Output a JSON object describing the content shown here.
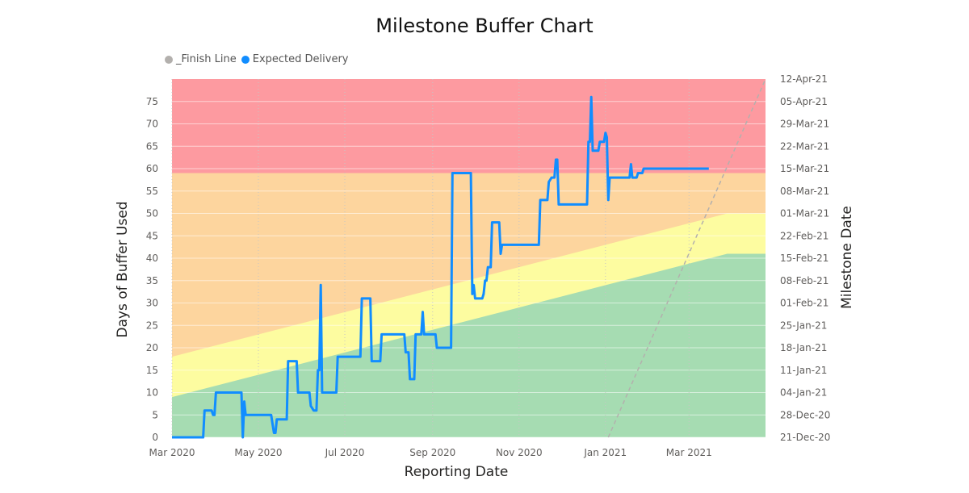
{
  "chart_data": {
    "type": "line",
    "title": "Milestone Buffer Chart",
    "xlabel": "Reporting Date",
    "ylabel": "Days of Buffer Used",
    "y2label": "Milestone Date",
    "x_range": [
      "2020-03-01",
      "2021-04-24"
    ],
    "ylim": [
      0,
      80
    ],
    "y_ticks": [
      0,
      5,
      10,
      15,
      20,
      25,
      30,
      35,
      40,
      45,
      50,
      55,
      60,
      65,
      70,
      75
    ],
    "x_ticks": [
      {
        "date": "2020-03-01",
        "label": "Mar 2020"
      },
      {
        "date": "2020-05-01",
        "label": "May 2020"
      },
      {
        "date": "2020-07-01",
        "label": "Jul 2020"
      },
      {
        "date": "2020-09-01",
        "label": "Sep 2020"
      },
      {
        "date": "2020-11-01",
        "label": "Nov 2020"
      },
      {
        "date": "2021-01-01",
        "label": "Jan 2021"
      },
      {
        "date": "2021-03-01",
        "label": "Mar 2021"
      }
    ],
    "y2_range": [
      "2020-12-21",
      "2021-04-12"
    ],
    "y2_ticks": [
      "21-Dec-20",
      "28-Dec-20",
      "04-Jan-21",
      "11-Jan-21",
      "18-Jan-21",
      "25-Jan-21",
      "01-Feb-21",
      "08-Feb-21",
      "15-Feb-21",
      "22-Feb-21",
      "01-Mar-21",
      "08-Mar-21",
      "15-Mar-21",
      "22-Mar-21",
      "29-Mar-21",
      "05-Apr-21",
      "12-Apr-21"
    ],
    "grid": true,
    "legend_position": "top-left",
    "zones": [
      {
        "name": "green",
        "color": "#a6dcb2",
        "upper": [
          [
            "2020-03-01",
            9
          ],
          [
            "2021-03-28",
            41
          ],
          [
            "2021-04-24",
            41
          ]
        ]
      },
      {
        "name": "yellow",
        "color": "#fdfca0",
        "upper": [
          [
            "2020-03-01",
            18
          ],
          [
            "2021-03-28",
            50
          ],
          [
            "2021-04-24",
            50
          ]
        ]
      },
      {
        "name": "orange",
        "color": "#fdd59e",
        "upper": [
          [
            "2020-03-01",
            59
          ],
          [
            "2021-04-24",
            59
          ]
        ]
      },
      {
        "name": "red",
        "color": "#fd9aa0",
        "upper": [
          [
            "2020-03-01",
            80
          ],
          [
            "2021-04-24",
            80
          ]
        ]
      }
    ],
    "series": [
      {
        "name": "_Finish Line",
        "color": "#b3b0ad",
        "dashed": true,
        "axis": "y2",
        "points": [
          [
            "2021-01-03",
            "2020-12-21"
          ],
          [
            "2021-04-24",
            "2021-04-12"
          ]
        ]
      },
      {
        "name": "Expected Delivery",
        "color": "#118dff",
        "axis": "y",
        "points": [
          [
            "2020-03-01",
            0
          ],
          [
            "2020-03-23",
            0
          ],
          [
            "2020-03-24",
            6
          ],
          [
            "2020-03-29",
            6
          ],
          [
            "2020-03-30",
            5
          ],
          [
            "2020-03-31",
            5
          ],
          [
            "2020-04-01",
            10
          ],
          [
            "2020-04-19",
            10
          ],
          [
            "2020-04-20",
            0
          ],
          [
            "2020-04-21",
            8
          ],
          [
            "2020-04-22",
            5
          ],
          [
            "2020-05-10",
            5
          ],
          [
            "2020-05-11",
            3
          ],
          [
            "2020-05-12",
            1
          ],
          [
            "2020-05-13",
            1
          ],
          [
            "2020-05-14",
            4
          ],
          [
            "2020-05-21",
            4
          ],
          [
            "2020-05-22",
            17
          ],
          [
            "2020-05-28",
            17
          ],
          [
            "2020-05-29",
            10
          ],
          [
            "2020-06-06",
            10
          ],
          [
            "2020-06-07",
            7
          ],
          [
            "2020-06-09",
            6
          ],
          [
            "2020-06-11",
            6
          ],
          [
            "2020-06-12",
            15
          ],
          [
            "2020-06-13",
            15
          ],
          [
            "2020-06-14",
            34
          ],
          [
            "2020-06-15",
            10
          ],
          [
            "2020-06-25",
            10
          ],
          [
            "2020-06-26",
            18
          ],
          [
            "2020-07-12",
            18
          ],
          [
            "2020-07-13",
            31
          ],
          [
            "2020-07-19",
            31
          ],
          [
            "2020-07-20",
            17
          ],
          [
            "2020-07-26",
            17
          ],
          [
            "2020-07-27",
            23
          ],
          [
            "2020-08-12",
            23
          ],
          [
            "2020-08-13",
            19
          ],
          [
            "2020-08-15",
            19
          ],
          [
            "2020-08-16",
            13
          ],
          [
            "2020-08-19",
            13
          ],
          [
            "2020-08-20",
            23
          ],
          [
            "2020-08-24",
            23
          ],
          [
            "2020-08-25",
            28
          ],
          [
            "2020-08-26",
            23
          ],
          [
            "2020-09-03",
            23
          ],
          [
            "2020-09-04",
            20
          ],
          [
            "2020-09-14",
            20
          ],
          [
            "2020-09-15",
            59
          ],
          [
            "2020-09-28",
            59
          ],
          [
            "2020-09-29",
            32
          ],
          [
            "2020-09-30",
            34
          ],
          [
            "2020-10-01",
            31
          ],
          [
            "2020-10-06",
            31
          ],
          [
            "2020-10-07",
            32
          ],
          [
            "2020-10-08",
            35
          ],
          [
            "2020-10-09",
            35
          ],
          [
            "2020-10-10",
            38
          ],
          [
            "2020-10-12",
            38
          ],
          [
            "2020-10-13",
            48
          ],
          [
            "2020-10-18",
            48
          ],
          [
            "2020-10-19",
            41
          ],
          [
            "2020-10-20",
            43
          ],
          [
            "2020-11-15",
            43
          ],
          [
            "2020-11-16",
            53
          ],
          [
            "2020-11-21",
            53
          ],
          [
            "2020-11-22",
            57
          ],
          [
            "2020-11-24",
            58
          ],
          [
            "2020-11-26",
            58
          ],
          [
            "2020-11-27",
            62
          ],
          [
            "2020-11-28",
            62
          ],
          [
            "2020-11-29",
            52
          ],
          [
            "2020-12-19",
            52
          ],
          [
            "2020-12-20",
            66
          ],
          [
            "2020-12-21",
            66
          ],
          [
            "2020-12-22",
            76
          ],
          [
            "2020-12-23",
            64
          ],
          [
            "2020-12-27",
            64
          ],
          [
            "2020-12-28",
            66
          ],
          [
            "2020-12-31",
            66
          ],
          [
            "2021-01-01",
            68
          ],
          [
            "2021-01-02",
            67
          ],
          [
            "2021-01-03",
            53
          ],
          [
            "2021-01-04",
            58
          ],
          [
            "2021-01-18",
            58
          ],
          [
            "2021-01-19",
            61
          ],
          [
            "2021-01-20",
            58
          ],
          [
            "2021-01-23",
            58
          ],
          [
            "2021-01-24",
            59
          ],
          [
            "2021-01-27",
            59
          ],
          [
            "2021-01-28",
            60
          ],
          [
            "2021-03-15",
            60
          ]
        ]
      }
    ]
  },
  "legend": [
    {
      "name": "_Finish Line",
      "color": "#b3b0ad"
    },
    {
      "name": "Expected Delivery",
      "color": "#118dff"
    }
  ]
}
